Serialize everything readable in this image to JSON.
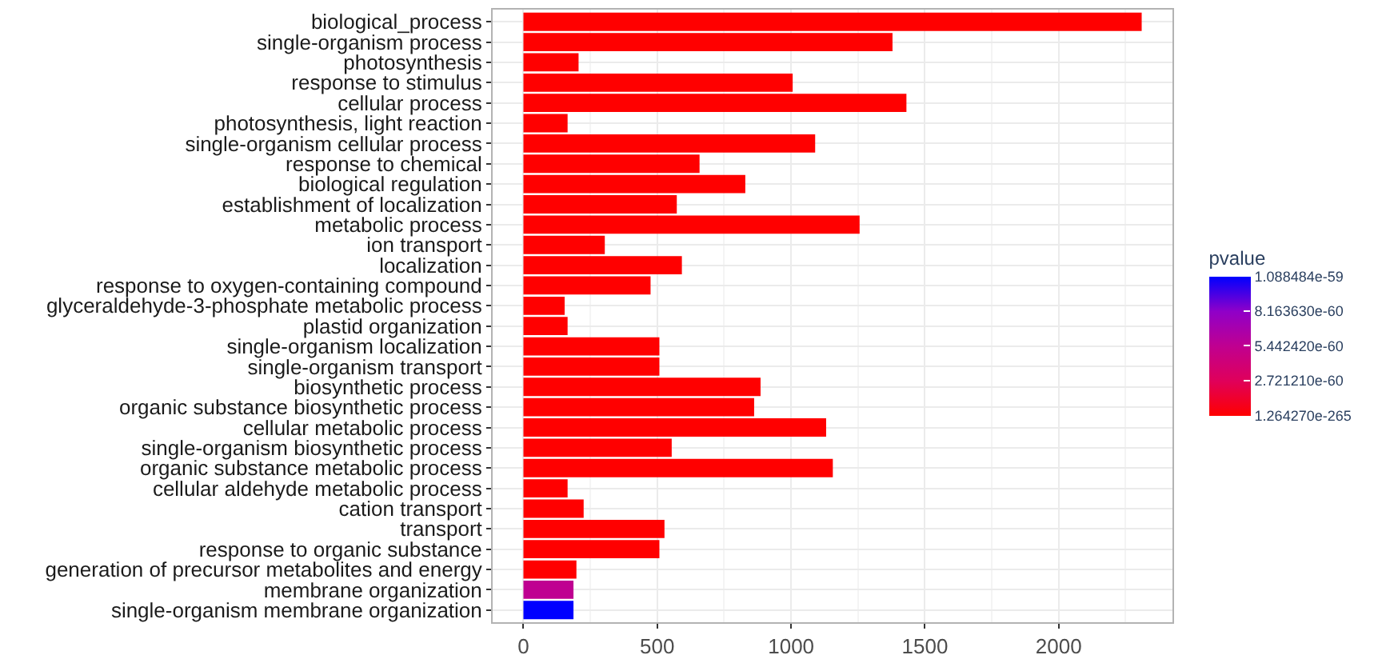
{
  "chart_data": {
    "type": "bar",
    "orientation": "horizontal",
    "clabel": "pvalue",
    "categories": [
      "biological_process",
      "single-organism process",
      "photosynthesis",
      "response to stimulus",
      "cellular process",
      "photosynthesis, light reaction",
      "single-organism cellular process",
      "response to chemical",
      "biological regulation",
      "establishment of localization",
      "metabolic process",
      "ion transport",
      "localization",
      "response to oxygen-containing compound",
      "glyceraldehyde-3-phosphate metabolic process",
      "plastid organization",
      "single-organism localization",
      "single-organism transport",
      "biosynthetic process",
      "organic substance biosynthetic process",
      "cellular metabolic process",
      "single-organism biosynthetic process",
      "organic substance metabolic process",
      "cellular aldehyde metabolic process",
      "cation transport",
      "transport",
      "response to organic substance",
      "generation of precursor metabolites and energy",
      "membrane organization",
      "single-organism membrane organization"
    ],
    "values": [
      2310,
      1379,
      206,
      1006,
      1431,
      165,
      1090,
      658,
      829,
      573,
      1256,
      304,
      592,
      475,
      154,
      165,
      508,
      508,
      886,
      862,
      1131,
      554,
      1156,
      165,
      225,
      527,
      508,
      198,
      187,
      187
    ],
    "cvalues": [
      1.26427e-265,
      1.26427e-265,
      1.26427e-265,
      1.26427e-265,
      1.26427e-265,
      1.26427e-265,
      1.26427e-265,
      1.26427e-265,
      1.26427e-265,
      1.26427e-265,
      1.26427e-265,
      1.26427e-265,
      1.26427e-265,
      1.26427e-265,
      1.26427e-265,
      1.26427e-265,
      1.26427e-265,
      1.26427e-265,
      1.26427e-265,
      1.26427e-265,
      1.26427e-265,
      1.26427e-265,
      1.26427e-265,
      1.26427e-265,
      1.26427e-265,
      1.26427e-265,
      1.26427e-265,
      1.26427e-265,
      5.5e-60,
      1.088484e-59
    ],
    "clim": [
      1.26427e-265,
      1.088484e-59
    ],
    "cticks": [
      {
        "value": 1.26427e-265,
        "label": "1.264270e-265"
      },
      {
        "value": 2.72121e-60,
        "label": "2.721210e-60"
      },
      {
        "value": 5.44242e-60,
        "label": "5.442420e-60"
      },
      {
        "value": 8.16363e-60,
        "label": "8.163630e-60"
      },
      {
        "value": 1.088484e-59,
        "label": "1.088484e-59"
      }
    ],
    "xlim": [
      -115,
      2425
    ],
    "xticks": [
      0,
      500,
      1000,
      1500,
      2000
    ],
    "grid": true
  }
}
